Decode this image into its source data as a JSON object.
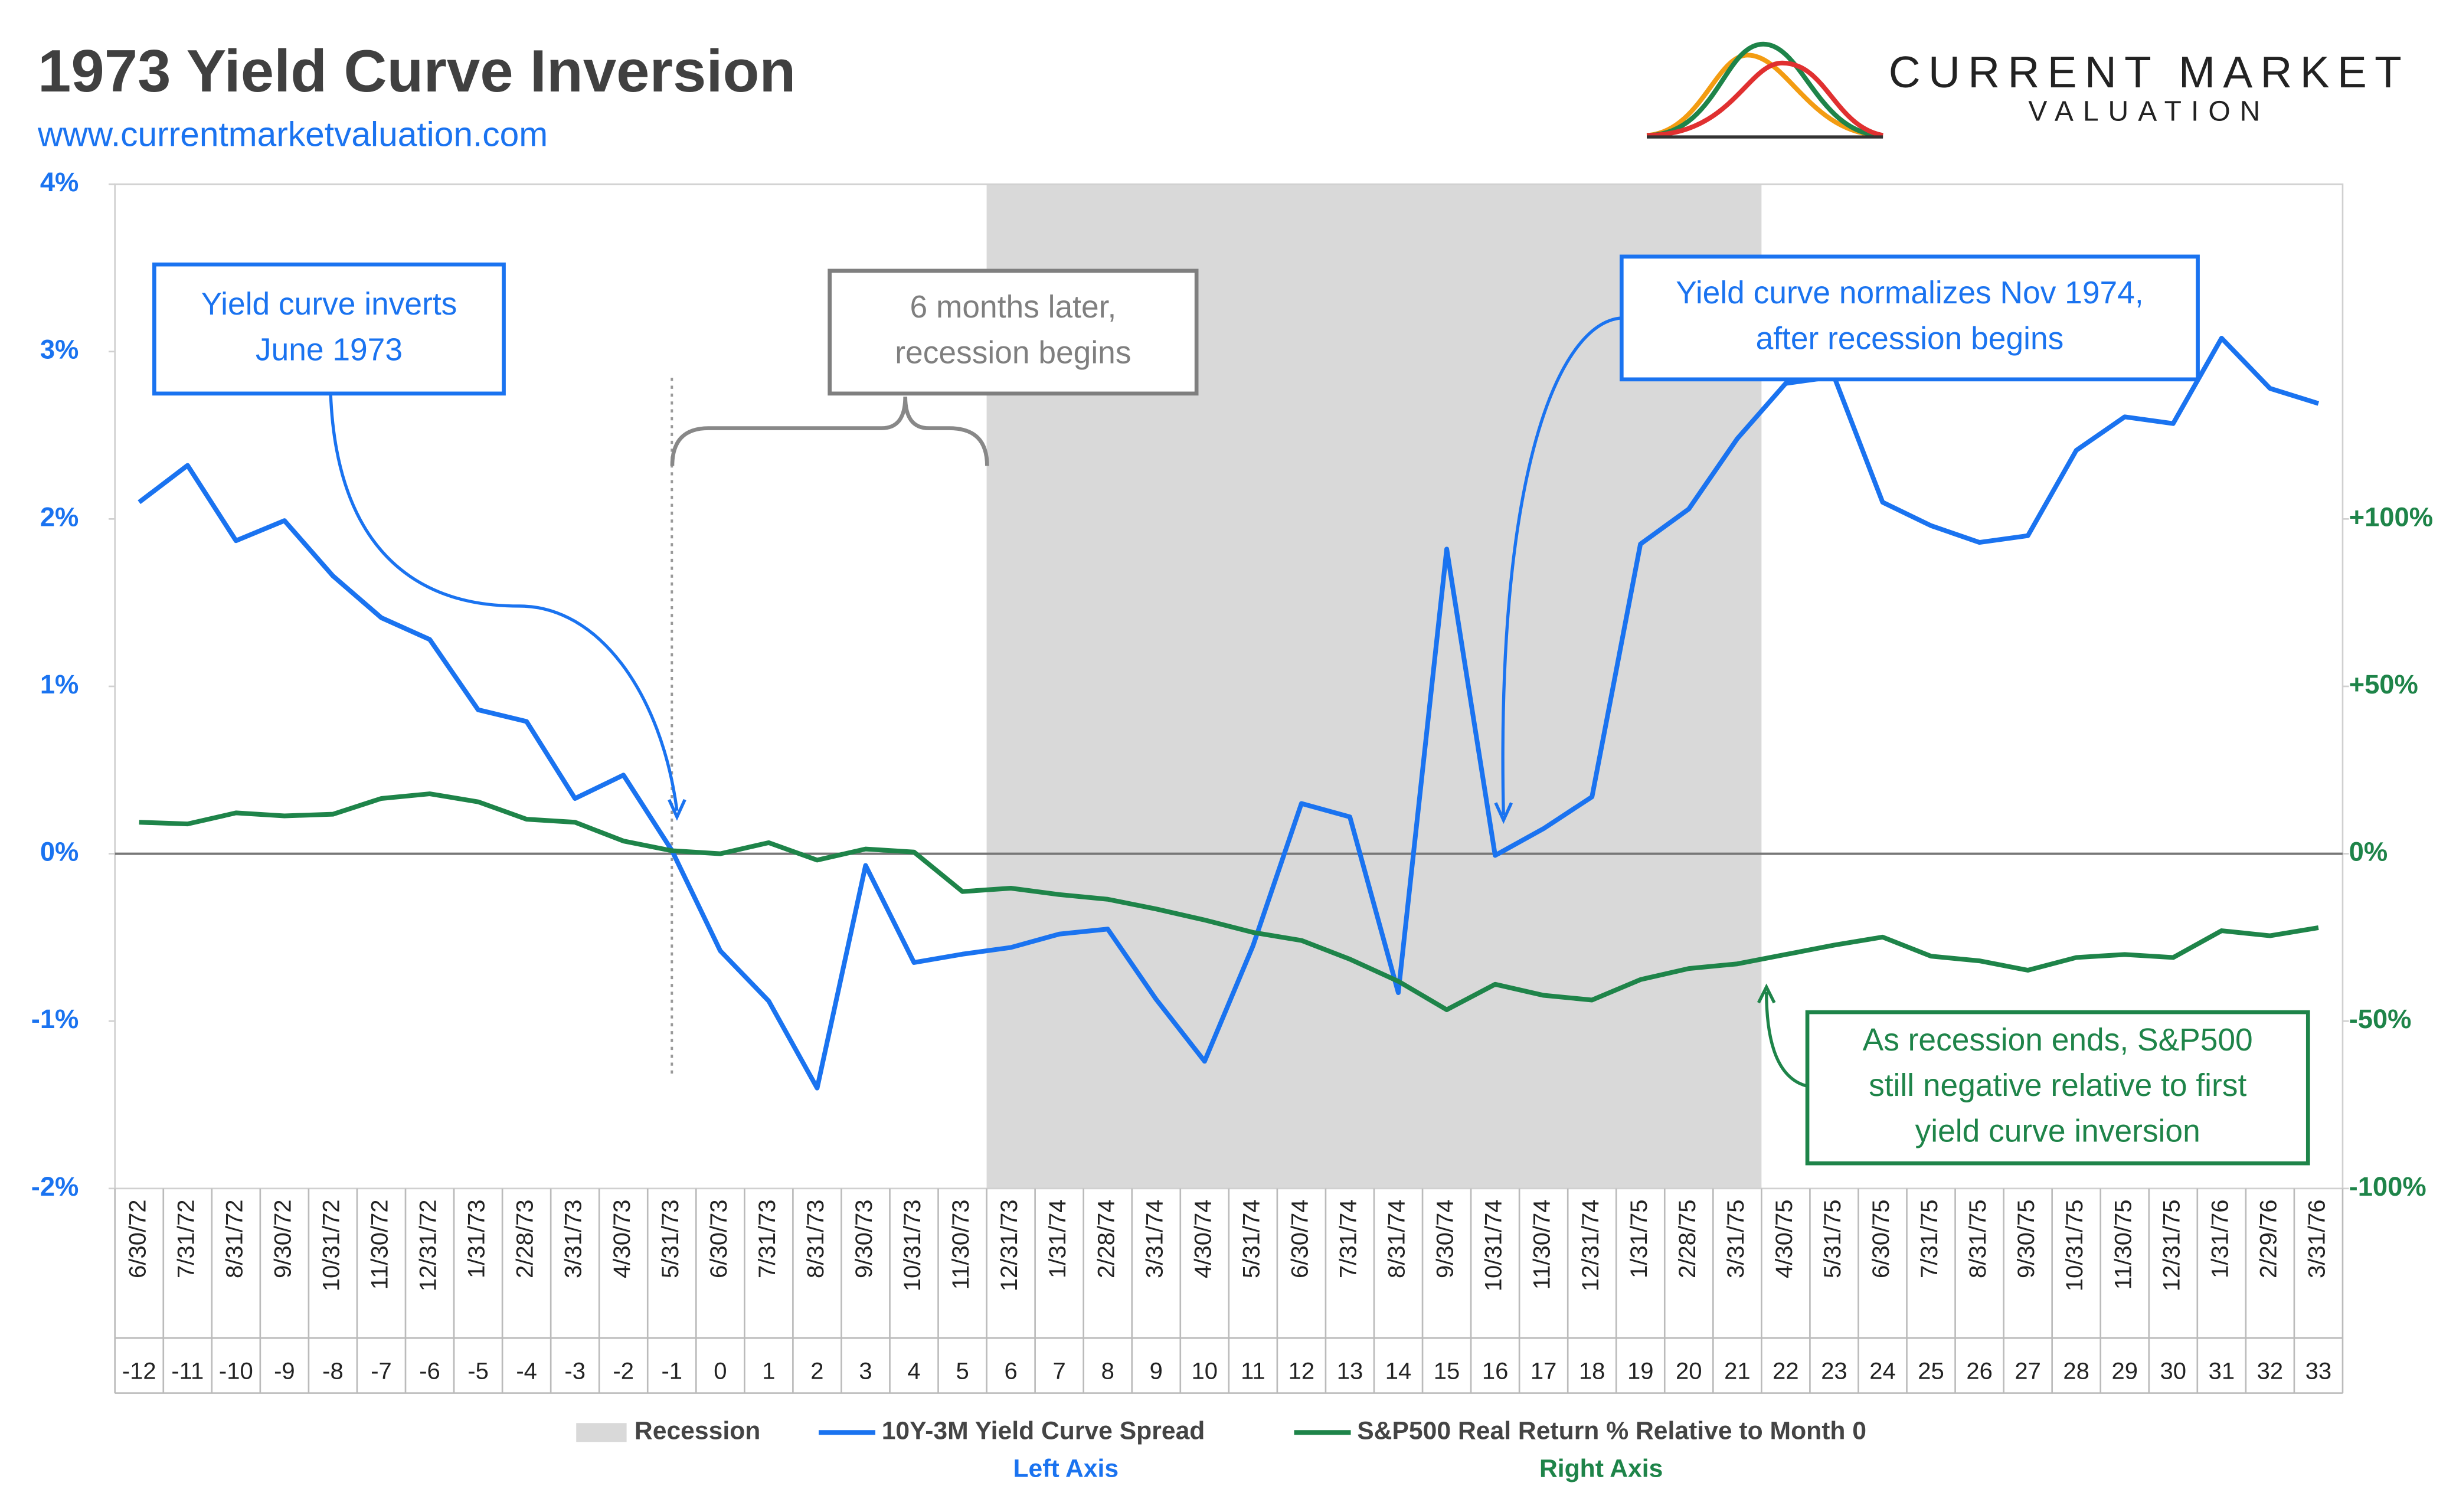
{
  "chart_data": {
    "type": "line",
    "title": "1973 Yield Curve Inversion",
    "subtitle": "www.currentmarketvaluation.com",
    "logo": [
      "CURRENT MARKET",
      "VALUATION"
    ],
    "categories": [
      "6/30/72",
      "7/31/72",
      "8/31/72",
      "9/30/72",
      "10/31/72",
      "11/30/72",
      "12/31/72",
      "1/31/73",
      "2/28/73",
      "3/31/73",
      "4/30/73",
      "5/31/73",
      "6/30/73",
      "7/31/73",
      "8/31/73",
      "9/30/73",
      "10/31/73",
      "11/30/73",
      "12/31/73",
      "1/31/74",
      "2/28/74",
      "3/31/74",
      "4/30/74",
      "5/31/74",
      "6/30/74",
      "7/31/74",
      "8/31/74",
      "9/30/74",
      "10/31/74",
      "11/30/74",
      "12/31/74",
      "1/31/75",
      "2/28/75",
      "3/31/75",
      "4/30/75",
      "5/31/75",
      "6/30/75",
      "7/31/75",
      "8/31/75",
      "9/30/75",
      "10/31/75",
      "11/30/75",
      "12/31/75",
      "1/31/76",
      "2/29/76",
      "3/31/76"
    ],
    "months": [
      -12,
      -11,
      -10,
      -9,
      -8,
      -7,
      -6,
      -5,
      -4,
      -3,
      -2,
      -1,
      0,
      1,
      2,
      3,
      4,
      5,
      6,
      7,
      8,
      9,
      10,
      11,
      12,
      13,
      14,
      15,
      16,
      17,
      18,
      19,
      20,
      21,
      22,
      23,
      24,
      25,
      26,
      27,
      28,
      29,
      30,
      31,
      32,
      33
    ],
    "recession": {
      "name": "Recession",
      "start": "12/31/73",
      "end": "3/31/75",
      "color": "#d9d9d9"
    },
    "series": [
      {
        "name": "10Y-3M Yield Curve Spread",
        "axis_note": "Left Axis",
        "color": "#1a73f0",
        "axis": "y",
        "values": [
          2.1,
          2.32,
          1.87,
          1.99,
          1.66,
          1.41,
          1.28,
          0.86,
          0.79,
          0.33,
          0.47,
          0.02,
          -0.58,
          -0.88,
          -1.4,
          -0.07,
          -0.65,
          -0.6,
          -0.56,
          -0.48,
          -0.45,
          -0.87,
          -1.24,
          -0.55,
          0.3,
          0.22,
          -0.83,
          1.82,
          -0.01,
          0.15,
          0.34,
          1.85,
          2.06,
          2.48,
          2.81,
          2.85,
          2.1,
          1.96,
          1.86,
          1.9,
          2.41,
          2.61,
          2.57,
          3.08,
          2.78,
          2.69
        ]
      },
      {
        "name": "S&P500 Real Return % Relative to Month 0",
        "axis_note": "Right Axis",
        "color": "#1e8449",
        "axis": "y2",
        "values": [
          9.4,
          8.9,
          12.2,
          11.3,
          11.8,
          16.5,
          17.9,
          15.5,
          10.3,
          9.4,
          3.8,
          0.9,
          0,
          3.3,
          -1.9,
          1.4,
          0.5,
          -11.3,
          -10.3,
          -12.2,
          -13.6,
          -16.5,
          -19.8,
          -23.5,
          -25.9,
          -31.5,
          -38.1,
          -46.6,
          -39.0,
          -42.3,
          -43.7,
          -37.6,
          -34.3,
          -32.9,
          -30.1,
          -27.3,
          -24.9,
          -30.6,
          -32.0,
          -34.8,
          -31.0,
          -30.1,
          -31.0,
          -23.0,
          -24.5,
          -22.1
        ]
      }
    ],
    "ylim": [
      -2,
      4
    ],
    "yticks": [
      {
        "value": -2,
        "label": "-2%"
      },
      {
        "value": -1,
        "label": "-1%"
      },
      {
        "value": 0,
        "label": "0%"
      },
      {
        "value": 1,
        "label": "1%"
      },
      {
        "value": 2,
        "label": "2%"
      },
      {
        "value": 3,
        "label": "3%"
      },
      {
        "value": 4,
        "label": "4%"
      }
    ],
    "y2lim": [
      -100,
      200
    ],
    "y2ticks": [
      {
        "value": -100,
        "label": "-100%"
      },
      {
        "value": -50,
        "label": "-50%"
      },
      {
        "value": 0,
        "label": "0%"
      },
      {
        "value": 50,
        "label": "+50%"
      },
      {
        "value": 100,
        "label": "+100%"
      }
    ],
    "annotations": [
      {
        "lines": [
          "Yield curve inverts",
          "June 1973"
        ],
        "color": "#1a73f0"
      },
      {
        "lines": [
          "6 months later,",
          "recession begins"
        ],
        "color": "#7f7f7f"
      },
      {
        "lines": [
          "Yield curve normalizes Nov 1974,",
          "after recession begins"
        ],
        "color": "#1a73f0"
      },
      {
        "lines": [
          "As recession ends, S&P500",
          "still negative relative to first",
          "yield curve inversion"
        ],
        "color": "#1e8449"
      }
    ]
  }
}
